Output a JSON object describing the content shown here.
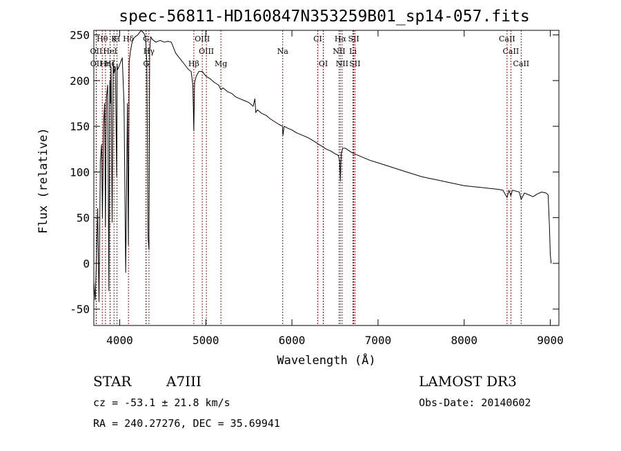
{
  "chart_data": {
    "type": "line",
    "title": "spec-56811-HD160847N353259B01_sp14-057.fits",
    "xlabel": "Wavelength (Å)",
    "ylabel": "Flux (relative)",
    "xlim": [
      3700,
      9100
    ],
    "ylim": [
      -68,
      255
    ],
    "xticks": [
      4000,
      5000,
      6000,
      7000,
      8000,
      9000
    ],
    "yticks": [
      -50,
      0,
      50,
      100,
      150,
      200,
      250
    ],
    "grid": false,
    "series": [
      {
        "name": "spectrum",
        "x": [
          3700,
          3715,
          3730,
          3745,
          3760,
          3775,
          3790,
          3800,
          3812,
          3825,
          3835,
          3845,
          3860,
          3875,
          3885,
          3893,
          3900,
          3912,
          3925,
          3935,
          3950,
          3965,
          3970,
          3975,
          3990,
          4010,
          4030,
          4050,
          4070,
          4090,
          4101,
          4110,
          4125,
          4150,
          4180,
          4210,
          4250,
          4280,
          4300,
          4315,
          4330,
          4340,
          4348,
          4360,
          4380,
          4420,
          4470,
          4520,
          4560,
          4600,
          4650,
          4700,
          4750,
          4800,
          4830,
          4850,
          4861,
          4870,
          4890,
          4920,
          4960,
          5000,
          5050,
          5100,
          5150,
          5175,
          5200,
          5250,
          5300,
          5350,
          5400,
          5450,
          5500,
          5550,
          5570,
          5580,
          5600,
          5650,
          5700,
          5750,
          5800,
          5850,
          5890,
          5896,
          5910,
          5950,
          6000,
          6050,
          6100,
          6150,
          6200,
          6250,
          6300,
          6350,
          6400,
          6450,
          6500,
          6540,
          6555,
          6563,
          6572,
          6590,
          6620,
          6700,
          6800,
          6900,
          7000,
          7100,
          7200,
          7300,
          7400,
          7500,
          7600,
          7700,
          7800,
          7900,
          8000,
          8100,
          8200,
          8300,
          8400,
          8450,
          8498,
          8520,
          8542,
          8560,
          8600,
          8640,
          8662,
          8700,
          8750,
          8800,
          8850,
          8900,
          8950,
          8975,
          8990,
          9000,
          9010
        ],
        "y": [
          -20,
          -40,
          0,
          60,
          -42,
          110,
          130,
          50,
          150,
          175,
          40,
          180,
          195,
          -30,
          200,
          175,
          215,
          45,
          220,
          208,
          215,
          95,
          218,
          212,
          215,
          220,
          225,
          175,
          -10,
          175,
          20,
          220,
          232,
          245,
          248,
          250,
          255,
          252,
          248,
          220,
          28,
          15,
          232,
          248,
          245,
          242,
          244,
          242,
          243,
          242,
          230,
          224,
          218,
          212,
          210,
          195,
          145,
          198,
          205,
          210,
          210,
          205,
          202,
          198,
          195,
          190,
          192,
          188,
          186,
          182,
          180,
          178,
          176,
          172,
          180,
          165,
          168,
          164,
          162,
          158,
          155,
          152,
          150,
          140,
          150,
          148,
          146,
          143,
          141,
          139,
          137,
          134,
          131,
          128,
          125,
          123,
          120,
          118,
          112,
          90,
          120,
          126,
          126,
          121,
          117,
          113,
          110,
          107,
          104,
          101,
          98,
          95,
          93,
          91,
          89,
          87,
          85,
          84,
          83,
          82,
          81,
          80,
          72,
          80,
          74,
          80,
          79,
          78,
          70,
          77,
          75,
          73,
          76,
          78,
          77,
          75,
          40,
          10,
          0
        ]
      }
    ],
    "line_markers": [
      {
        "label": "Hθ",
        "x": 3798,
        "row": 0
      },
      {
        "label": "K",
        "x": 3934,
        "row": 0
      },
      {
        "label": "H",
        "x": 3969,
        "row": 0
      },
      {
        "label": "Hδ",
        "x": 4102,
        "row": 0
      },
      {
        "label": "G",
        "x": 4305,
        "row": 0
      },
      {
        "label": "OIII",
        "x": 4959,
        "row": 0
      },
      {
        "label": "CI",
        "x": 6300,
        "row": 0
      },
      {
        "label": "Hα",
        "x": 6563,
        "row": 0
      },
      {
        "label": "SII",
        "x": 6717,
        "row": 0
      },
      {
        "label": "CaII",
        "x": 8498,
        "row": 0
      },
      {
        "label": "OII",
        "x": 3727,
        "row": 1
      },
      {
        "label": "HeI",
        "x": 3889,
        "row": 1
      },
      {
        "label": "Hγ",
        "x": 4340,
        "row": 1
      },
      {
        "label": "OIII",
        "x": 5007,
        "row": 1
      },
      {
        "label": "Na",
        "x": 5893,
        "row": 1
      },
      {
        "label": "NII",
        "x": 6548,
        "row": 1
      },
      {
        "label": "Li",
        "x": 6708,
        "row": 1
      },
      {
        "label": "CaII",
        "x": 8542,
        "row": 1
      },
      {
        "label": "OII",
        "x": 3729,
        "row": 2
      },
      {
        "label": "Hη",
        "x": 3835,
        "row": 2
      },
      {
        "label": "Hζ",
        "x": 3889,
        "row": 2
      },
      {
        "label": "G",
        "x": 4307,
        "row": 2
      },
      {
        "label": "Hβ",
        "x": 4861,
        "row": 2
      },
      {
        "label": "Mg",
        "x": 5175,
        "row": 2
      },
      {
        "label": "OI",
        "x": 6364,
        "row": 2
      },
      {
        "label": "NII",
        "x": 6583,
        "row": 2
      },
      {
        "label": "SII",
        "x": 6731,
        "row": 2
      },
      {
        "label": "CaII",
        "x": 8662,
        "row": 2
      }
    ],
    "marker_color": "#c00000"
  },
  "info": {
    "object_class": "STAR",
    "subclass": "A7III",
    "survey": "LAMOST DR3",
    "redshift": "cz = -53.1 ± 21.8 km/s",
    "obs_date": "Obs-Date: 20140602",
    "coords": "RA = 240.27276, DEC =  35.69941"
  }
}
